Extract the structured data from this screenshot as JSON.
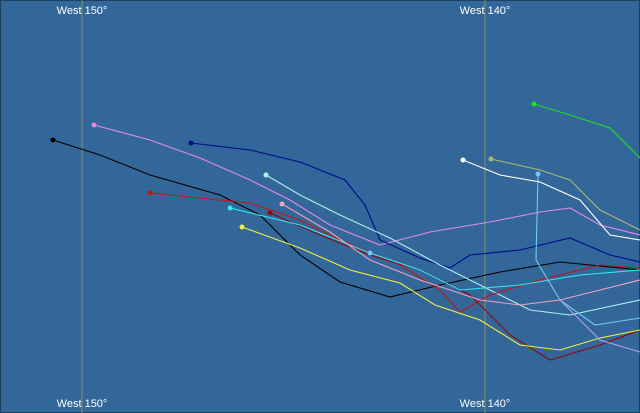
{
  "meridians": [
    {
      "top_label": "West 150°",
      "bottom_label": "West 150°"
    },
    {
      "top_label": "West 140°",
      "bottom_label": "West 140°"
    }
  ]
}
